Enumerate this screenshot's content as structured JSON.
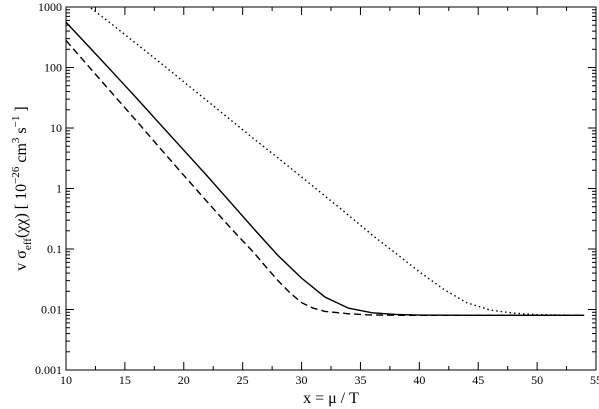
{
  "chart_data": {
    "type": "line",
    "title": "",
    "xlabel": "x = μ / T",
    "ylabel": {
      "parts": [
        "v σ",
        "eff",
        "(χχ) [ 10",
        "−26",
        " cm",
        "3",
        " s",
        "−1",
        " ]"
      ]
    },
    "xlim": [
      10,
      55
    ],
    "ylim": [
      0.001,
      1000
    ],
    "yscale": "log",
    "grid": false,
    "legend": "none",
    "xticks": [
      10,
      15,
      20,
      25,
      30,
      35,
      40,
      45,
      50,
      55
    ],
    "yticks": [
      0.001,
      0.01,
      0.1,
      1,
      10,
      100,
      1000
    ],
    "xtick_labels": [
      "10",
      "15",
      "20",
      "25",
      "30",
      "35",
      "40",
      "45",
      "50",
      "55"
    ],
    "ytick_labels": [
      "0.001",
      "0.01",
      "0.1",
      "1",
      "10",
      "100",
      "1000"
    ],
    "series": [
      {
        "style": "solid",
        "color": "#000000",
        "points": [
          [
            10,
            560
          ],
          [
            12,
            215
          ],
          [
            14,
            82
          ],
          [
            16,
            31
          ],
          [
            18,
            11.5
          ],
          [
            20,
            4.3
          ],
          [
            22,
            1.6
          ],
          [
            24,
            0.58
          ],
          [
            26,
            0.21
          ],
          [
            28,
            0.078
          ],
          [
            30,
            0.033
          ],
          [
            32,
            0.016
          ],
          [
            34,
            0.0105
          ],
          [
            36,
            0.0088
          ],
          [
            38,
            0.0083
          ],
          [
            40,
            0.0081
          ],
          [
            45,
            0.008
          ],
          [
            50,
            0.008
          ],
          [
            54,
            0.008
          ]
        ]
      },
      {
        "style": "dashed",
        "color": "#000000",
        "points": [
          [
            10,
            280
          ],
          [
            12,
            100
          ],
          [
            14,
            36
          ],
          [
            16,
            13
          ],
          [
            18,
            4.6
          ],
          [
            20,
            1.65
          ],
          [
            22,
            0.6
          ],
          [
            24,
            0.22
          ],
          [
            26,
            0.085
          ],
          [
            27,
            0.05
          ],
          [
            28,
            0.03
          ],
          [
            29,
            0.019
          ],
          [
            30,
            0.013
          ],
          [
            31,
            0.0105
          ],
          [
            32,
            0.0093
          ],
          [
            34,
            0.0085
          ],
          [
            36,
            0.0081
          ],
          [
            40,
            0.008
          ],
          [
            45,
            0.008
          ],
          [
            50,
            0.008
          ],
          [
            54,
            0.008
          ]
        ]
      },
      {
        "style": "dotted",
        "color": "#000000",
        "points": [
          [
            10,
            2000
          ],
          [
            12,
            1000
          ],
          [
            14,
            500
          ],
          [
            16,
            245
          ],
          [
            18,
            120
          ],
          [
            20,
            58
          ],
          [
            22,
            28
          ],
          [
            24,
            13.5
          ],
          [
            26,
            6.5
          ],
          [
            28,
            3.2
          ],
          [
            30,
            1.55
          ],
          [
            32,
            0.75
          ],
          [
            34,
            0.36
          ],
          [
            36,
            0.17
          ],
          [
            38,
            0.085
          ],
          [
            40,
            0.042
          ],
          [
            42,
            0.022
          ],
          [
            44,
            0.013
          ],
          [
            46,
            0.0098
          ],
          [
            48,
            0.0087
          ],
          [
            50,
            0.0082
          ],
          [
            52,
            0.0081
          ],
          [
            54,
            0.008
          ]
        ]
      }
    ]
  }
}
